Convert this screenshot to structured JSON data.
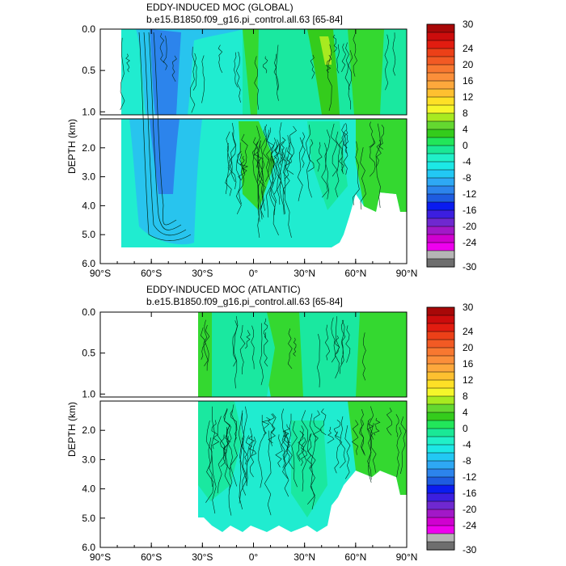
{
  "colors": {
    "palette": [
      "#6e6e6e",
      "#b5b5b5",
      "#ee00ee",
      "#d000d0",
      "#a218c8",
      "#6f28d0",
      "#3c1ee0",
      "#0a1cf0",
      "#1e5ce0",
      "#2c84ec",
      "#2ea8f4",
      "#22c8f4",
      "#1ce8e6",
      "#20f0c8",
      "#1ae896",
      "#22e65a",
      "#34cc1c",
      "#64d830",
      "#a8ea20",
      "#f6f62a",
      "#fee026",
      "#fec030",
      "#fda83c",
      "#fb8f3a",
      "#f87830",
      "#f25a24",
      "#ec4018",
      "#e21c10",
      "#cc0c0c",
      "#a80808"
    ],
    "ocean_deep": "#28c4ee",
    "ocean_mid": "#20ecd0",
    "ocean_light": "#1ae8a0",
    "positive": "#34d830",
    "contour": "#002818"
  },
  "chart_data": [
    {
      "type": "heatmap",
      "title": "EDDY-INDUCED MOC (GLOBAL)",
      "subtitle": "b.e15.B1850.f09_g16.pi_control.all.63 [65-84]",
      "ylabel": "DEPTH (km)",
      "x_ticks": [
        "90°S",
        "60°S",
        "30°S",
        "0°",
        "30°N",
        "60°N",
        "90°N"
      ],
      "y_ticks_upper": [
        "0.0",
        "0.5",
        "1.0"
      ],
      "y_ticks_lower": [
        "2.0",
        "3.0",
        "4.0",
        "5.0",
        "6.0"
      ],
      "xlim": [
        -90,
        90
      ],
      "ylim_upper_km": [
        0,
        1
      ],
      "ylim_lower_km": [
        1,
        6
      ],
      "colorbar_labels": [
        "30",
        "24",
        "20",
        "16",
        "12",
        "8",
        "4",
        "0",
        "-4",
        "-8",
        "-12",
        "-16",
        "-20",
        "-24",
        "-30"
      ],
      "colorbar_range": [
        -30,
        30
      ],
      "contour_interval": 2,
      "features": [
        {
          "lat": -52,
          "depth_km": 0.5,
          "value": -12
        },
        {
          "lat": -52,
          "depth_km": 2.5,
          "value": -10
        },
        {
          "lat": 42,
          "depth_km": 0.2,
          "value": 5
        }
      ]
    },
    {
      "type": "heatmap",
      "title": "EDDY-INDUCED MOC (ATLANTIC)",
      "subtitle": "b.e15.B1850.f09_g16.pi_control.all.63 [65-84]",
      "ylabel": "DEPTH (km)",
      "x_ticks": [
        "90°S",
        "60°S",
        "30°S",
        "0°",
        "30°N",
        "60°N",
        "90°N"
      ],
      "y_ticks_upper": [
        "0.0",
        "0.5",
        "1.0"
      ],
      "y_ticks_lower": [
        "2.0",
        "3.0",
        "4.0",
        "5.0",
        "6.0"
      ],
      "xlim": [
        -90,
        90
      ],
      "ylim_upper_km": [
        0,
        1
      ],
      "ylim_lower_km": [
        1,
        6
      ],
      "colorbar_labels": [
        "30",
        "24",
        "20",
        "16",
        "12",
        "8",
        "4",
        "0",
        "-4",
        "-8",
        "-12",
        "-16",
        "-20",
        "-24",
        "-30"
      ],
      "colorbar_range": [
        -30,
        30
      ],
      "contour_interval": 2,
      "features": [
        {
          "lat": 40,
          "depth_km": 0.4,
          "value": 4
        },
        {
          "lat": 0,
          "depth_km": 3.0,
          "value": -2
        }
      ]
    }
  ]
}
